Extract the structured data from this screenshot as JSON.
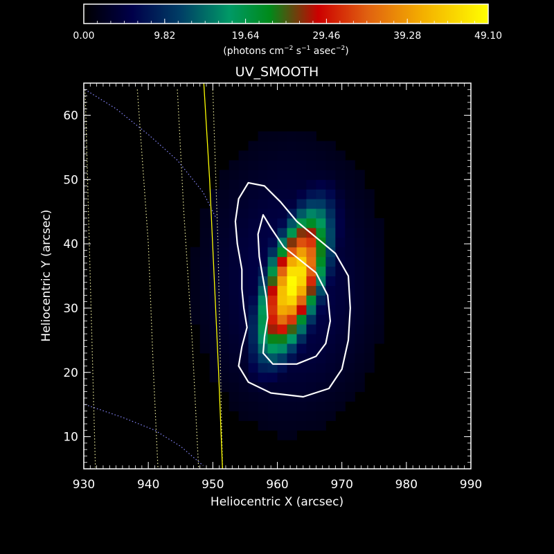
{
  "chart_data": {
    "type": "heatmap",
    "title": "UV_SMOOTH",
    "xlabel": "Heliocentric X (arcsec)",
    "ylabel": "Heliocentric Y (arcsec)",
    "xlim": [
      930,
      990
    ],
    "ylim": [
      5,
      65
    ],
    "x_ticks": [
      930,
      940,
      950,
      960,
      970,
      980,
      990
    ],
    "y_ticks": [
      10,
      20,
      30,
      40,
      50,
      60
    ],
    "colorbar": {
      "ticks": [
        "0.00",
        "9.82",
        "19.64",
        "29.46",
        "39.28",
        "49.10"
      ],
      "range": [
        0.0,
        49.1
      ],
      "label_parts": [
        "(photons cm",
        "−2",
        " s",
        "−1",
        " asec",
        "−2",
        ")"
      ],
      "colormap": [
        "#000000",
        "#00004a",
        "#003f66",
        "#009966",
        "#008a1a",
        "#cc0000",
        "#e06010",
        "#f4b000",
        "#ffff00"
      ]
    },
    "source": {
      "center_x": 962.5,
      "center_y": 34,
      "peak_value": 49.1,
      "description_level_contours": [
        9.82,
        29.46
      ]
    },
    "contours": [
      {
        "level": "outer",
        "color": "#ffffff",
        "points": [
          [
            955.5,
            49.5
          ],
          [
            958,
            49
          ],
          [
            960.5,
            46.5
          ],
          [
            963,
            43.5
          ],
          [
            966,
            41
          ],
          [
            969,
            38.5
          ],
          [
            971,
            35
          ],
          [
            971.3,
            30
          ],
          [
            971,
            25
          ],
          [
            970,
            20.5
          ],
          [
            968,
            17.5
          ],
          [
            964,
            16.2
          ],
          [
            959,
            16.8
          ],
          [
            955.5,
            18.5
          ],
          [
            954,
            21
          ],
          [
            954.5,
            24
          ],
          [
            955.3,
            27
          ],
          [
            954.8,
            30
          ],
          [
            954.5,
            33
          ],
          [
            954.5,
            36
          ],
          [
            953.8,
            40
          ],
          [
            953.5,
            43.5
          ],
          [
            954,
            47
          ]
        ]
      },
      {
        "level": "inner",
        "color": "#ffffff",
        "points": [
          [
            957.8,
            44.5
          ],
          [
            959,
            42.5
          ],
          [
            961,
            39.5
          ],
          [
            963.5,
            37.5
          ],
          [
            966,
            35.5
          ],
          [
            967.8,
            32
          ],
          [
            968.2,
            28
          ],
          [
            967.5,
            24.5
          ],
          [
            966,
            22.5
          ],
          [
            963,
            21.3
          ],
          [
            959.3,
            21.3
          ],
          [
            957.8,
            23
          ],
          [
            958,
            25.5
          ],
          [
            958.5,
            28.5
          ],
          [
            958.3,
            31.5
          ],
          [
            957.8,
            34.5
          ],
          [
            957.2,
            38
          ],
          [
            957,
            41.5
          ]
        ]
      }
    ],
    "grid_lines": [
      {
        "color": "#f2f2a0",
        "points": [
          [
            930.2,
            64
          ],
          [
            931.8,
            5
          ]
        ]
      },
      {
        "color": "#f2f2a0",
        "points": [
          [
            938.3,
            64
          ],
          [
            940,
            40
          ],
          [
            940.8,
            20
          ],
          [
            941.5,
            5
          ]
        ]
      },
      {
        "color": "#f2f2a0",
        "points": [
          [
            944.5,
            64
          ],
          [
            945.5,
            45
          ],
          [
            946.8,
            25
          ],
          [
            947.8,
            5
          ]
        ]
      },
      {
        "color": "#f2f2a0",
        "points": [
          [
            950,
            64
          ],
          [
            950.8,
            40
          ],
          [
            951.2,
            20
          ],
          [
            951.5,
            5
          ]
        ]
      },
      {
        "color": "#8888ff",
        "points": [
          [
            930.2,
            64
          ],
          [
            935,
            61
          ],
          [
            940,
            57
          ],
          [
            944.5,
            53
          ],
          [
            948.5,
            48
          ],
          [
            950.5,
            44
          ]
        ]
      },
      {
        "color": "#8888ff",
        "points": [
          [
            930.2,
            15
          ],
          [
            936,
            13
          ],
          [
            941,
            11
          ],
          [
            945,
            8.5
          ],
          [
            948.5,
            5.5
          ]
        ]
      }
    ],
    "limb": {
      "color": "#ffff00",
      "points": [
        [
          948.6,
          65
        ],
        [
          949.5,
          50
        ],
        [
          950.2,
          35
        ],
        [
          950.9,
          20
        ],
        [
          951.5,
          5
        ]
      ]
    }
  }
}
